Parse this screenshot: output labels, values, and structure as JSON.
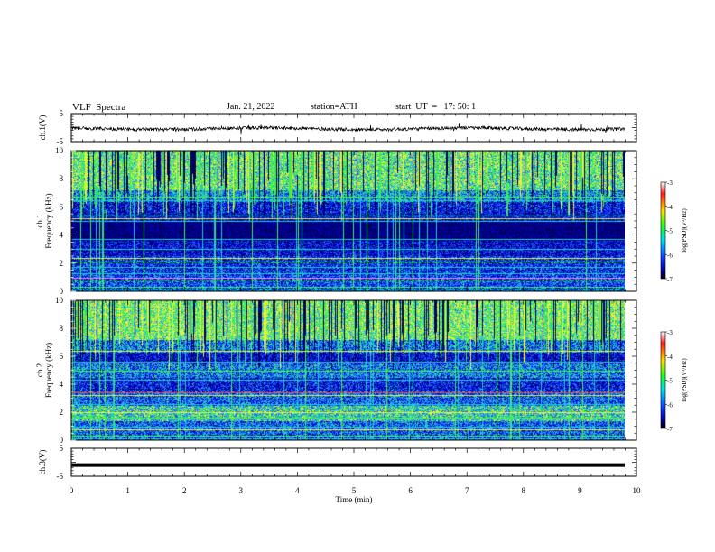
{
  "header": {
    "title": "VLF  Spectra",
    "date": "Jan. 21, 2022",
    "station": "station=ATH",
    "start": "start  UT  =   17: 50: 1"
  },
  "chart_data": [
    {
      "type": "line",
      "panel": "ch1",
      "ylabel": "ch.1(V)",
      "ylim": [
        -5,
        5
      ],
      "y_ticks": [
        "5",
        "-5"
      ],
      "xlim": [
        0,
        10
      ],
      "note": "broadband waveform trace, values near 0 V with small spikes"
    },
    {
      "type": "heatmap",
      "panel": "ch1-spectrogram",
      "ylabel": "Frequency  (kHz)",
      "ylabel_channel": "ch.1",
      "ylim": [
        0,
        10
      ],
      "y_ticks": [
        "0",
        "2",
        "4",
        "6",
        "8",
        "10"
      ],
      "xlim": [
        0,
        10
      ],
      "colorbar": {
        "label": "log(PSD)(V²/Hz)",
        "range": [
          -7,
          -3
        ],
        "ticks": [
          "-3",
          "-4",
          "-5",
          "-6",
          "-7"
        ]
      },
      "note": "strong emissions (green/yellow) above 7 kHz, quiet band near 4-5 kHz, horizontal transmitter lines near 1, 2.3, 5.3 and 6.7 kHz"
    },
    {
      "type": "heatmap",
      "panel": "ch2-spectrogram",
      "ylabel": "Frequency  (kHz)",
      "ylabel_channel": "ch.2",
      "ylim": [
        0,
        10
      ],
      "y_ticks": [
        "0",
        "2",
        "4",
        "6",
        "8",
        "10"
      ],
      "xlim": [
        0,
        10
      ],
      "colorbar": {
        "label": "log(PSD)(V²/Hz)",
        "range": [
          -7,
          -3
        ],
        "ticks": [
          "-3",
          "-4",
          "-5",
          "-6",
          "-7"
        ]
      },
      "note": "strong emissions above 7 kHz, enhanced band near 2 kHz, transmitter lines near 3.3 and 5 kHz"
    },
    {
      "type": "line",
      "panel": "ch3",
      "ylabel": "ch.3(V)",
      "ylim": [
        -5,
        5
      ],
      "y_ticks": [
        "5",
        "-5"
      ],
      "xlim": [
        0,
        10
      ],
      "note": "flat thick trace at about -1 V"
    }
  ],
  "x_axis": {
    "label": "Time  (min)",
    "ticks": [
      "0",
      "1",
      "2",
      "3",
      "4",
      "5",
      "6",
      "7",
      "8",
      "9",
      "10"
    ]
  },
  "colors": {
    "background": "#000060",
    "base": "#0000c8",
    "medium": "#1e5aff",
    "cyan": "#1ec8d2",
    "green": "#3cf050",
    "yellow": "#e6f03c",
    "trace": "#000000"
  }
}
